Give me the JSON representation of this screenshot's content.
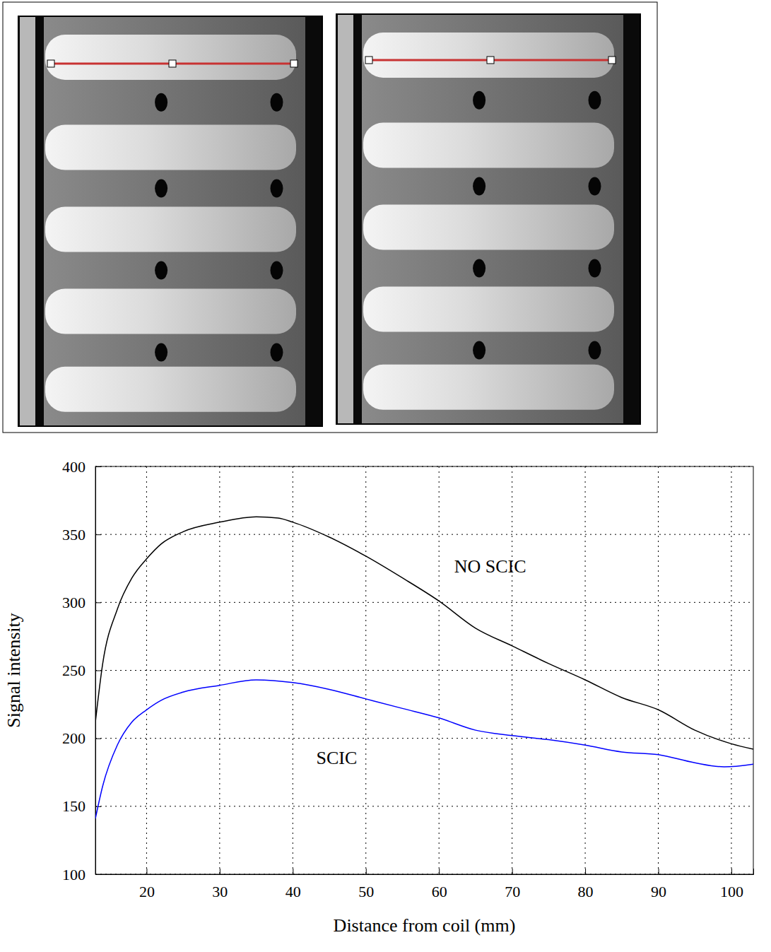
{
  "chart_data": {
    "type": "line",
    "x_label": "Distance from coil (mm)",
    "y_label": "Signal intensity",
    "xlim": [
      13,
      103
    ],
    "ylim": [
      100,
      400
    ],
    "xticks": [
      20,
      30,
      40,
      50,
      60,
      70,
      80,
      90,
      100
    ],
    "yticks": [
      100,
      150,
      200,
      250,
      300,
      350,
      400
    ],
    "grid": true,
    "series": [
      {
        "name": "NO SCIC",
        "color": "#000000",
        "x": [
          13,
          14,
          16,
          18,
          20,
          22,
          25,
          30,
          35,
          38,
          40,
          45,
          50,
          55,
          60,
          65,
          70,
          75,
          80,
          85,
          90,
          95,
          100,
          103
        ],
        "values": [
          212,
          255,
          295,
          318,
          332,
          343,
          352,
          359,
          363,
          362,
          359,
          348,
          334,
          318,
          301,
          281,
          268,
          255,
          243,
          230,
          221,
          206,
          196,
          192
        ]
      },
      {
        "name": "SCIC",
        "color": "#0000ff",
        "x": [
          13,
          14,
          16,
          18,
          20,
          22,
          25,
          30,
          35,
          40,
          45,
          50,
          55,
          60,
          65,
          70,
          75,
          80,
          85,
          90,
          95,
          99,
          103
        ],
        "values": [
          141,
          165,
          195,
          212,
          221,
          228,
          234,
          239,
          243,
          241,
          236,
          229,
          222,
          215,
          206,
          202,
          199,
          195,
          190,
          188,
          182,
          179,
          181
        ]
      }
    ],
    "annotations": [
      {
        "text": "NO SCIC",
        "x": 67,
        "y": 327
      },
      {
        "text": "SCIC",
        "x": 46,
        "y": 186
      }
    ]
  }
}
